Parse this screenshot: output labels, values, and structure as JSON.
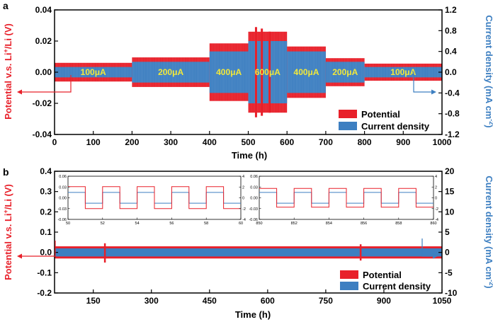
{
  "colors": {
    "potential": "#e8202a",
    "current": "#3d7fc1",
    "segment_label": "#f2e83a",
    "axis": "#000000"
  },
  "chart_data": [
    {
      "panel": "a",
      "type": "line",
      "xlabel": "Time (h)",
      "ylabel_left_pre": "Potential v.s. Li",
      "ylabel_left_sup": "+",
      "ylabel_left_post": "/Li (V)",
      "ylabel_right_pre": "Current density  (mA cm",
      "ylabel_right_sup": "-2",
      "ylabel_right_post": ")",
      "xlim": [
        0,
        1000
      ],
      "ylim_left": [
        -0.04,
        0.04
      ],
      "ylim_right": [
        -1.2,
        1.2
      ],
      "x_ticks": [
        "0",
        "100",
        "200",
        "300",
        "400",
        "500",
        "600",
        "700",
        "800",
        "900",
        "1000"
      ],
      "y_left_ticks": [
        "-0.04",
        "-0.02",
        "0.00",
        "0.02",
        "0.04"
      ],
      "y_right_ticks": [
        "-1.2",
        "-0.8",
        "-0.4",
        "0.0",
        "0.4",
        "0.8",
        "1.2"
      ],
      "legend": [
        "Potential",
        "Current density"
      ],
      "legend_position": "bottom-right",
      "segments": [
        {
          "label": "100μA",
          "x_start": 0,
          "x_end": 200,
          "potential_amp": 0.006,
          "current_amp": 0.1
        },
        {
          "label": "200μA",
          "x_start": 200,
          "x_end": 400,
          "potential_amp": 0.0095,
          "current_amp": 0.2
        },
        {
          "label": "400μA",
          "x_start": 400,
          "x_end": 500,
          "potential_amp": 0.0185,
          "current_amp": 0.4
        },
        {
          "label": "600μA",
          "x_start": 500,
          "x_end": 600,
          "potential_amp": 0.026,
          "current_amp": 0.6
        },
        {
          "label": "400μA",
          "x_start": 600,
          "x_end": 700,
          "potential_amp": 0.0165,
          "current_amp": 0.4
        },
        {
          "label": "200μA",
          "x_start": 700,
          "x_end": 800,
          "potential_amp": 0.009,
          "current_amp": 0.2
        },
        {
          "label": "100μA",
          "x_start": 800,
          "x_end": 1000,
          "potential_amp": 0.0055,
          "current_amp": 0.1
        }
      ]
    },
    {
      "panel": "b",
      "type": "line",
      "xlabel": "Time (h)",
      "ylabel_left_pre": "Potential v.s. Li",
      "ylabel_left_sup": "+",
      "ylabel_left_post": "/Li (V)",
      "ylabel_right_pre": "Current density  (mA cm",
      "ylabel_right_sup": "-2",
      "ylabel_right_post": ")",
      "xlim": [
        50,
        1050
      ],
      "ylim_left": [
        -0.2,
        0.4
      ],
      "ylim_right": [
        -10,
        20
      ],
      "x_ticks": [
        "150",
        "300",
        "450",
        "600",
        "750",
        "900",
        "1050"
      ],
      "y_left_ticks": [
        "-0.2",
        "-0.1",
        "0.0",
        "0.1",
        "0.2",
        "0.3",
        "0.4"
      ],
      "y_right_ticks": [
        "-10",
        "-5",
        "0",
        "5",
        "10",
        "15",
        "20"
      ],
      "legend": [
        "Potential",
        "Current density"
      ],
      "legend_position": "bottom-right",
      "potential_amp": 0.03,
      "current_amp": 1,
      "insets": [
        {
          "xlim": [
            50,
            60
          ],
          "ylim_left": [
            -0.06,
            0.06
          ],
          "ylim_right": [
            -4,
            4
          ],
          "x_ticks": [
            "50",
            "52",
            "54",
            "56",
            "58",
            "60"
          ],
          "y_left_ticks": [
            "0.06",
            "0.03",
            "0.00",
            "-0.03",
            "-0.06"
          ],
          "y_right_ticks": [
            "4",
            "2",
            "0",
            "-2",
            "-4"
          ],
          "potential_high": 0.031,
          "potential_low": -0.03,
          "current_high": 1,
          "current_low": -1,
          "period_h": 2
        },
        {
          "xlim": [
            850,
            860
          ],
          "ylim_left": [
            -0.06,
            0.06
          ],
          "ylim_right": [
            -4,
            4
          ],
          "x_ticks": [
            "850",
            "852",
            "854",
            "856",
            "858",
            "860"
          ],
          "y_left_ticks": [
            "0.06",
            "0.03",
            "0.00",
            "-0.03",
            "-0.06"
          ],
          "y_right_ticks": [
            "4",
            "2",
            "0",
            "-2",
            "-4"
          ],
          "potential_high": 0.026,
          "potential_low": -0.026,
          "current_high": 1,
          "current_low": -1,
          "period_h": 2
        }
      ]
    }
  ]
}
